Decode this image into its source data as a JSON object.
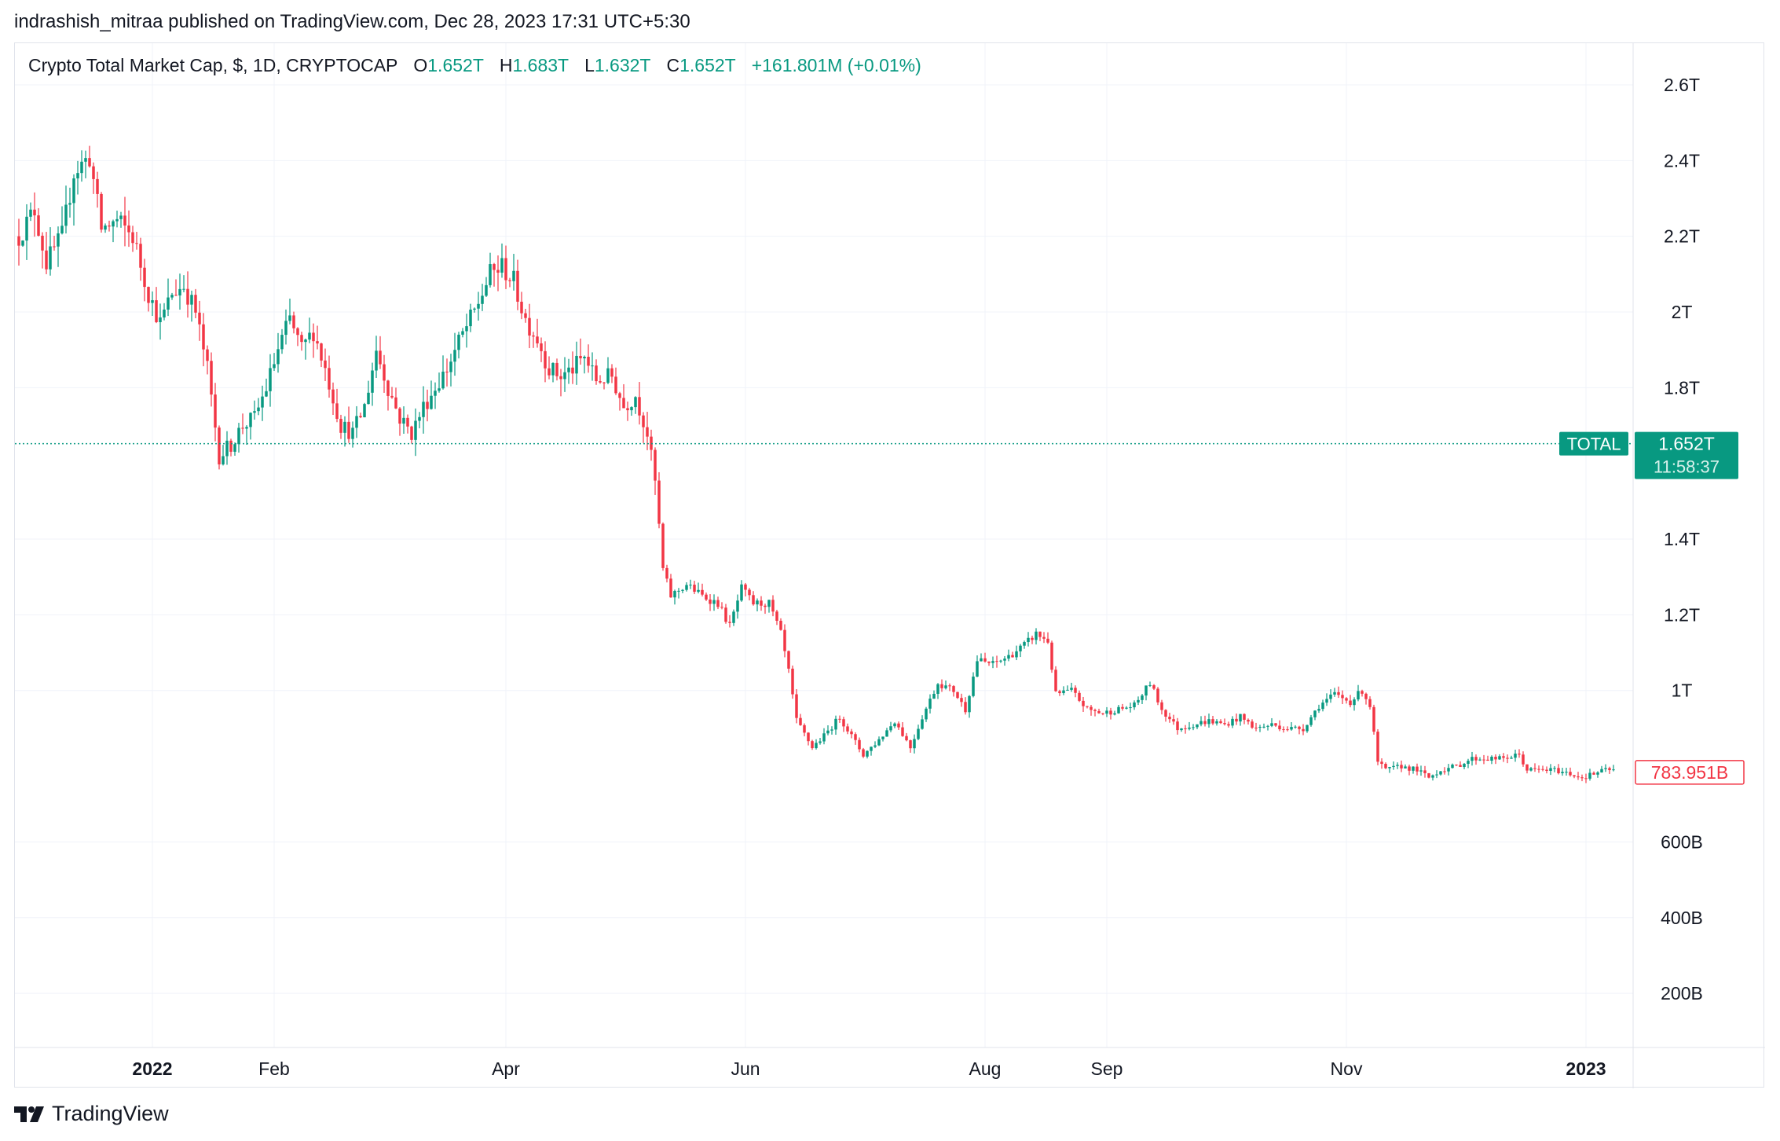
{
  "publisher_line": "indrashish_mitraa published on TradingView.com, Dec 28, 2023 17:31 UTC+5:30",
  "footer": {
    "brand": "TradingView",
    "logo_icon": "tradingview-logo-icon"
  },
  "legend": {
    "symbol": "Crypto Total Market Cap, $, 1D, CRYPTOCAP",
    "open_label": "O",
    "open": "1.652T",
    "high_label": "H",
    "high": "1.683T",
    "low_label": "L",
    "low": "1.632T",
    "close_label": "C",
    "close": "1.652T",
    "change": "+161.801M (+0.01%)"
  },
  "colors": {
    "up": "#089981",
    "down": "#F23645",
    "grid": "#f0f3fa",
    "text": "#131722"
  },
  "chart_data": {
    "type": "candlestick",
    "y_unit": "USD",
    "yticks": [
      {
        "value": 2600000000000,
        "label": "2.6T"
      },
      {
        "value": 2400000000000,
        "label": "2.4T"
      },
      {
        "value": 2200000000000,
        "label": "2.2T"
      },
      {
        "value": 2000000000000,
        "label": "2T"
      },
      {
        "value": 1800000000000,
        "label": "1.8T"
      },
      {
        "value": 1400000000000,
        "label": "1.4T"
      },
      {
        "value": 1200000000000,
        "label": "1.2T"
      },
      {
        "value": 1000000000000,
        "label": "1T"
      },
      {
        "value": 600000000000,
        "label": "600B"
      },
      {
        "value": 400000000000,
        "label": "400B"
      },
      {
        "value": 200000000000,
        "label": "200B"
      }
    ],
    "ylim": [
      57000000000,
      2710000000000
    ],
    "xlim": [
      "2021-11-27",
      "2023-01-13"
    ],
    "xticks": [
      {
        "date": "2022-01-01",
        "label": "2022",
        "bold": true
      },
      {
        "date": "2022-02-01",
        "label": "Feb",
        "bold": false
      },
      {
        "date": "2022-04-01",
        "label": "Apr",
        "bold": false
      },
      {
        "date": "2022-06-01",
        "label": "Jun",
        "bold": false
      },
      {
        "date": "2022-08-01",
        "label": "Aug",
        "bold": false
      },
      {
        "date": "2022-09-01",
        "label": "Sep",
        "bold": false
      },
      {
        "date": "2022-11-01",
        "label": "Nov",
        "bold": false
      },
      {
        "date": "2023-01-01",
        "label": "2023",
        "bold": true
      }
    ],
    "close_points": [
      [
        "2021-11-28",
        2.2
      ],
      [
        "2021-12-02",
        2.27
      ],
      [
        "2021-12-05",
        2.13
      ],
      [
        "2021-12-09",
        2.2
      ],
      [
        "2021-12-12",
        2.37
      ],
      [
        "2021-12-16",
        2.41
      ],
      [
        "2021-12-19",
        2.22
      ],
      [
        "2021-12-23",
        2.24
      ],
      [
        "2021-12-27",
        2.2
      ],
      [
        "2021-12-31",
        2.05
      ],
      [
        "2022-01-03",
        1.97
      ],
      [
        "2022-01-06",
        2.05
      ],
      [
        "2022-01-09",
        2.07
      ],
      [
        "2022-01-12",
        2.0
      ],
      [
        "2022-01-15",
        1.85
      ],
      [
        "2022-01-18",
        1.62
      ],
      [
        "2022-01-21",
        1.65
      ],
      [
        "2022-01-24",
        1.7
      ],
      [
        "2022-01-27",
        1.72
      ],
      [
        "2022-01-30",
        1.8
      ],
      [
        "2022-02-02",
        1.9
      ],
      [
        "2022-02-05",
        1.98
      ],
      [
        "2022-02-08",
        1.9
      ],
      [
        "2022-02-11",
        1.95
      ],
      [
        "2022-02-14",
        1.85
      ],
      [
        "2022-02-18",
        1.7
      ],
      [
        "2022-02-21",
        1.68
      ],
      [
        "2022-02-24",
        1.75
      ],
      [
        "2022-02-27",
        1.9
      ],
      [
        "2022-03-02",
        1.8
      ],
      [
        "2022-03-05",
        1.72
      ],
      [
        "2022-03-08",
        1.68
      ],
      [
        "2022-03-11",
        1.75
      ],
      [
        "2022-03-14",
        1.8
      ],
      [
        "2022-03-17",
        1.85
      ],
      [
        "2022-03-20",
        1.92
      ],
      [
        "2022-03-24",
        2.0
      ],
      [
        "2022-03-28",
        2.1
      ],
      [
        "2022-03-31",
        2.12
      ],
      [
        "2022-04-03",
        2.08
      ],
      [
        "2022-04-06",
        1.98
      ],
      [
        "2022-04-09",
        1.93
      ],
      [
        "2022-04-12",
        1.85
      ],
      [
        "2022-04-15",
        1.83
      ],
      [
        "2022-04-18",
        1.85
      ],
      [
        "2022-04-21",
        1.88
      ],
      [
        "2022-04-24",
        1.82
      ],
      [
        "2022-04-28",
        1.83
      ],
      [
        "2022-05-01",
        1.75
      ],
      [
        "2022-05-04",
        1.78
      ],
      [
        "2022-05-07",
        1.68
      ],
      [
        "2022-05-09",
        1.55
      ],
      [
        "2022-05-11",
        1.32
      ],
      [
        "2022-05-13",
        1.25
      ],
      [
        "2022-05-17",
        1.28
      ],
      [
        "2022-05-21",
        1.25
      ],
      [
        "2022-05-25",
        1.23
      ],
      [
        "2022-05-28",
        1.17
      ],
      [
        "2022-05-31",
        1.27
      ],
      [
        "2022-06-03",
        1.23
      ],
      [
        "2022-06-07",
        1.23
      ],
      [
        "2022-06-10",
        1.15
      ],
      [
        "2022-06-12",
        1.05
      ],
      [
        "2022-06-14",
        0.92
      ],
      [
        "2022-06-18",
        0.85
      ],
      [
        "2022-06-21",
        0.88
      ],
      [
        "2022-06-25",
        0.93
      ],
      [
        "2022-06-28",
        0.88
      ],
      [
        "2022-07-01",
        0.83
      ],
      [
        "2022-07-05",
        0.87
      ],
      [
        "2022-07-09",
        0.92
      ],
      [
        "2022-07-13",
        0.85
      ],
      [
        "2022-07-16",
        0.93
      ],
      [
        "2022-07-20",
        1.02
      ],
      [
        "2022-07-24",
        1.0
      ],
      [
        "2022-07-27",
        0.95
      ],
      [
        "2022-07-30",
        1.08
      ],
      [
        "2022-08-03",
        1.07
      ],
      [
        "2022-08-07",
        1.09
      ],
      [
        "2022-08-11",
        1.12
      ],
      [
        "2022-08-14",
        1.15
      ],
      [
        "2022-08-17",
        1.13
      ],
      [
        "2022-08-19",
        0.99
      ],
      [
        "2022-08-23",
        1.0
      ],
      [
        "2022-08-27",
        0.95
      ],
      [
        "2022-08-31",
        0.94
      ],
      [
        "2022-09-04",
        0.95
      ],
      [
        "2022-09-08",
        0.96
      ],
      [
        "2022-09-12",
        1.02
      ],
      [
        "2022-09-15",
        0.95
      ],
      [
        "2022-09-19",
        0.9
      ],
      [
        "2022-09-23",
        0.91
      ],
      [
        "2022-09-27",
        0.92
      ],
      [
        "2022-10-01",
        0.91
      ],
      [
        "2022-10-05",
        0.93
      ],
      [
        "2022-10-09",
        0.9
      ],
      [
        "2022-10-13",
        0.91
      ],
      [
        "2022-10-17",
        0.9
      ],
      [
        "2022-10-21",
        0.9
      ],
      [
        "2022-10-25",
        0.96
      ],
      [
        "2022-10-29",
        0.99
      ],
      [
        "2022-11-02",
        0.97
      ],
      [
        "2022-11-05",
        1.0
      ],
      [
        "2022-11-07",
        0.96
      ],
      [
        "2022-11-09",
        0.81
      ],
      [
        "2022-11-11",
        0.79
      ],
      [
        "2022-11-15",
        0.8
      ],
      [
        "2022-11-19",
        0.79
      ],
      [
        "2022-11-22",
        0.77
      ],
      [
        "2022-11-25",
        0.79
      ],
      [
        "2022-11-29",
        0.8
      ],
      [
        "2022-12-03",
        0.82
      ],
      [
        "2022-12-07",
        0.82
      ],
      [
        "2022-12-11",
        0.82
      ],
      [
        "2022-12-15",
        0.83
      ],
      [
        "2022-12-17",
        0.79
      ],
      [
        "2022-12-20",
        0.79
      ],
      [
        "2022-12-24",
        0.79
      ],
      [
        "2022-12-28",
        0.78
      ],
      [
        "2022-12-31",
        0.77
      ],
      [
        "2023-01-03",
        0.78
      ],
      [
        "2023-01-06",
        0.79
      ],
      [
        "2023-01-08",
        0.79
      ]
    ],
    "close_points_unit": "trillion USD",
    "price_line": {
      "label": "TOTAL",
      "value": 1652000000000,
      "price_label": "1.652T",
      "countdown": "11:58:37"
    },
    "last_value_label": {
      "value": 783951000000,
      "label": "783.951B"
    }
  }
}
